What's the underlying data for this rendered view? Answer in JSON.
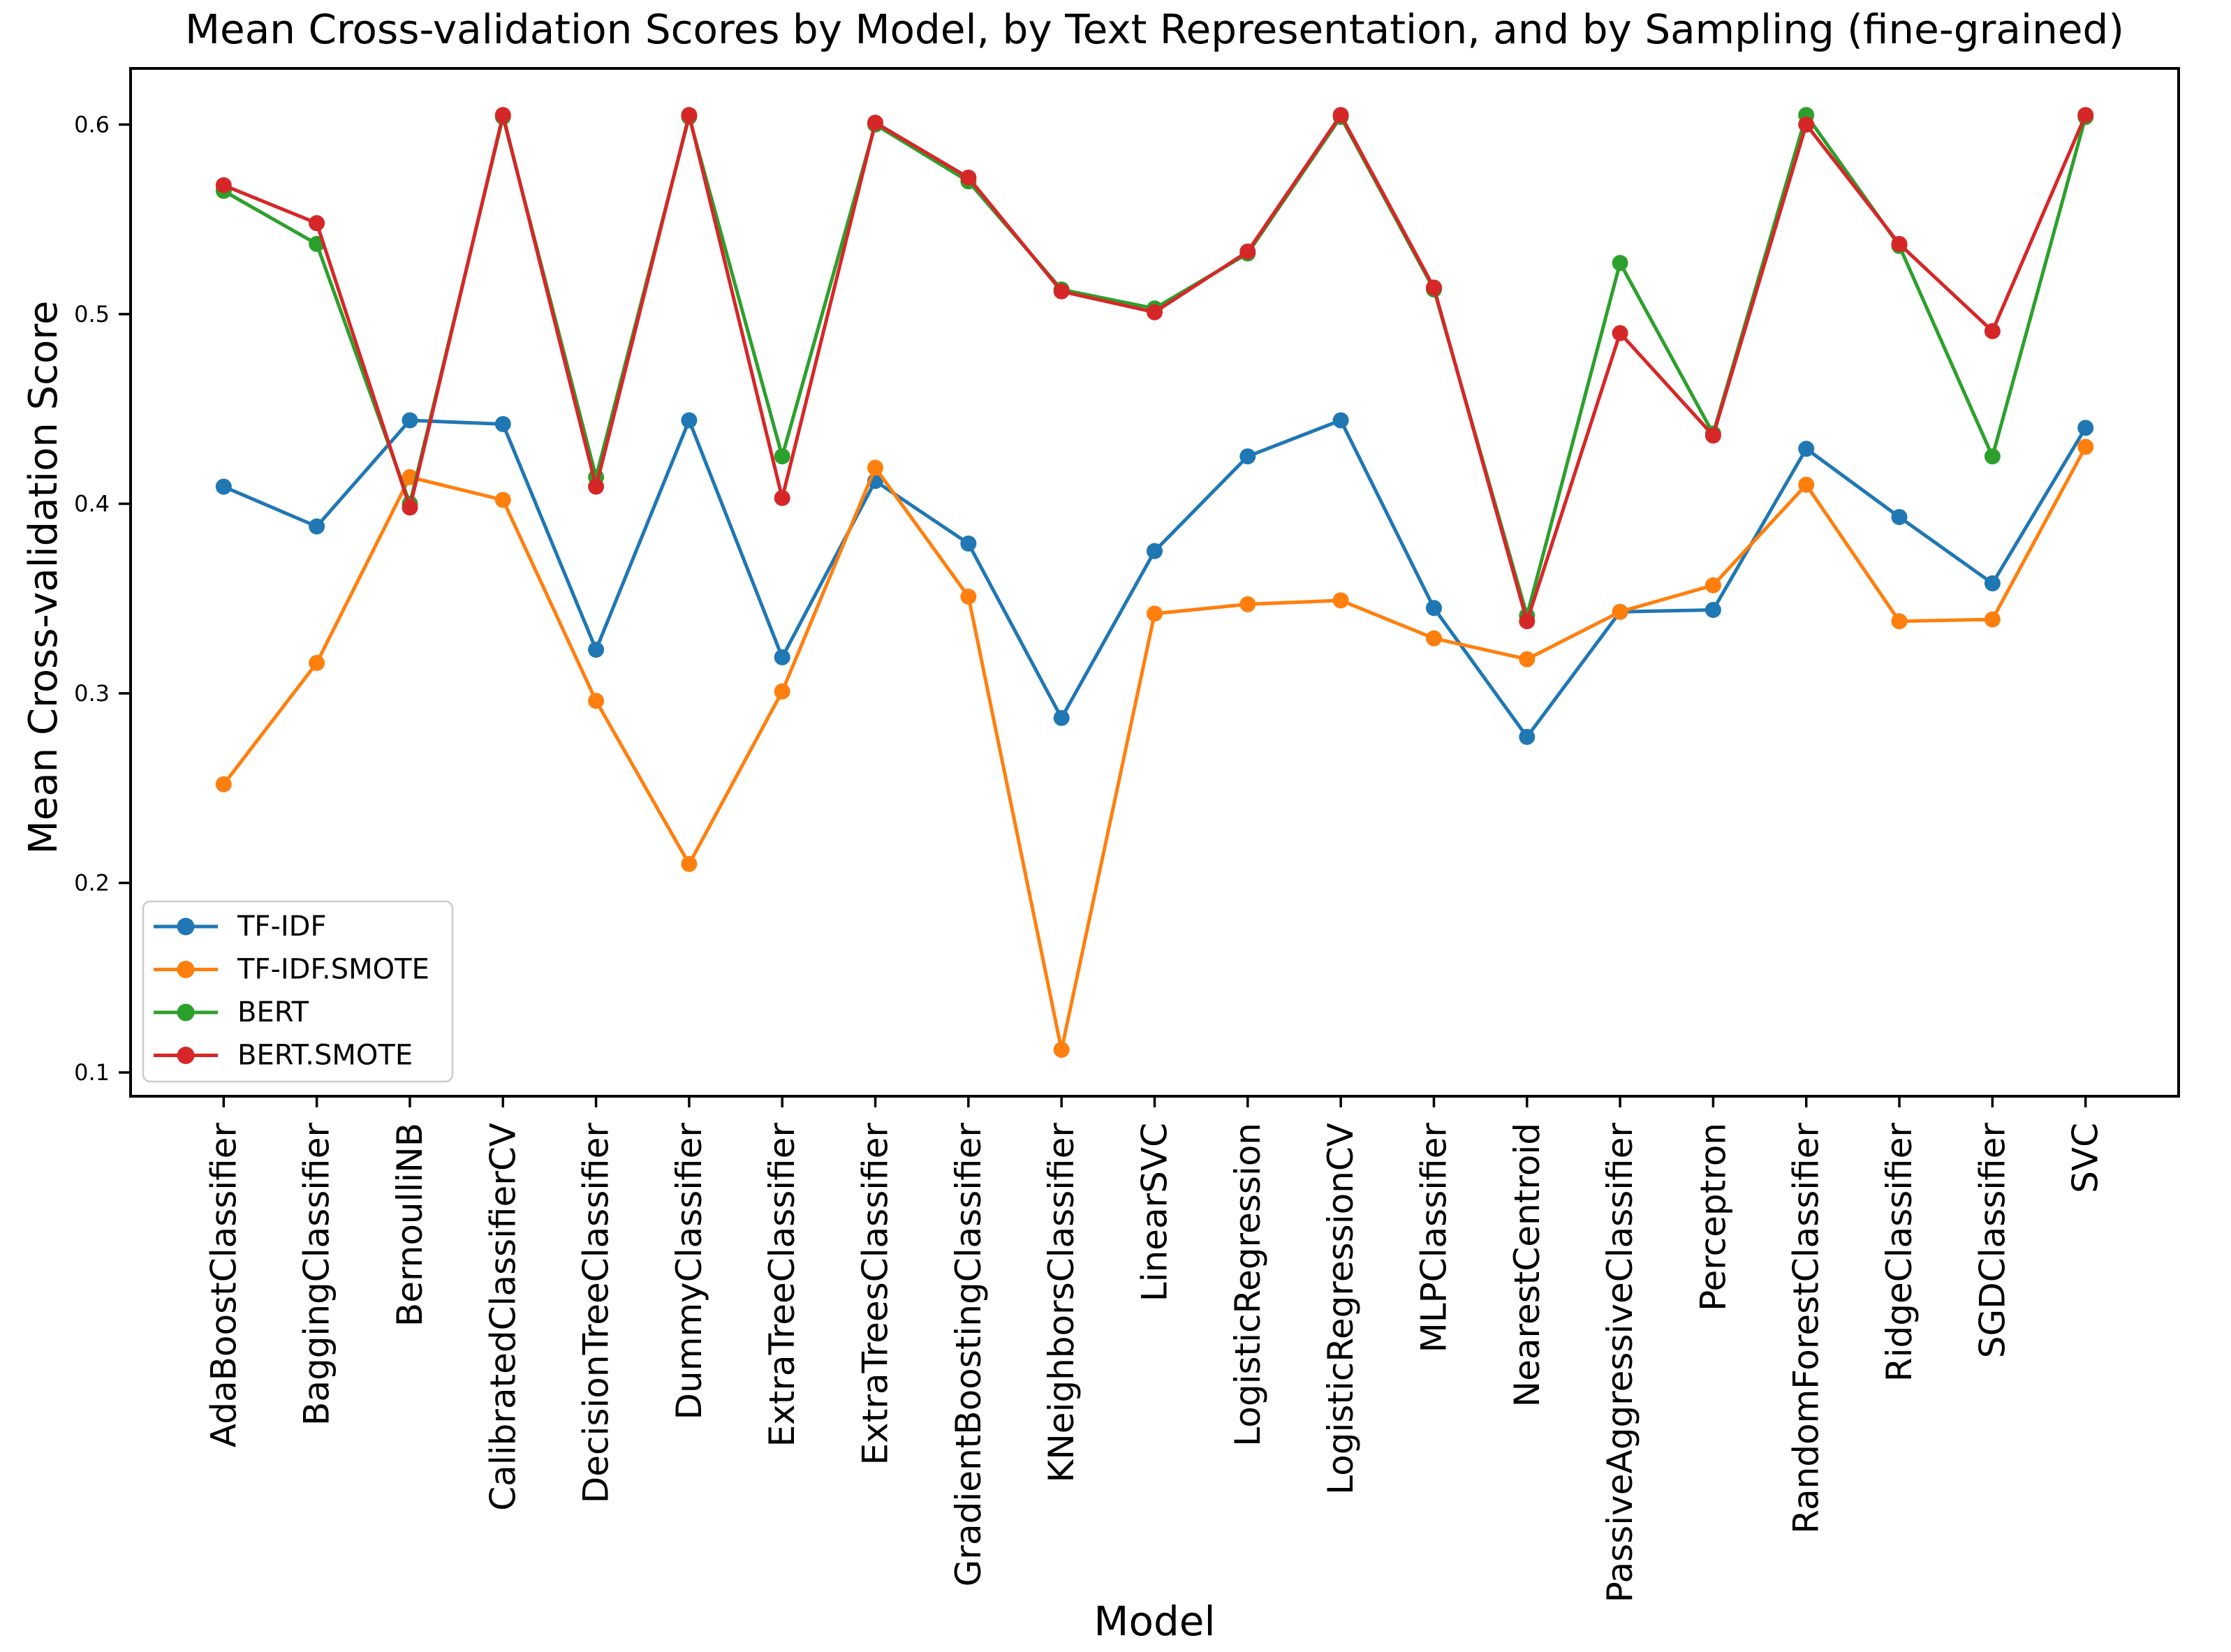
{
  "chart_data": {
    "type": "line",
    "title": "Mean Cross-validation Scores by Model, by Text Representation, and by Sampling (fine-grained)",
    "xlabel": "Model",
    "ylabel": "Mean Cross-validation Score",
    "ylim": [
      0.0875,
      0.6296
    ],
    "yticks": [
      0.1,
      0.2,
      0.3,
      0.4,
      0.5,
      0.6
    ],
    "grid": false,
    "legend_position": "lower-left",
    "marker": "circle",
    "categories": [
      "AdaBoostClassifier",
      "BaggingClassifier",
      "BernoulliNB",
      "CalibratedClassifierCV",
      "DecisionTreeClassifier",
      "DummyClassifier",
      "ExtraTreeClassifier",
      "ExtraTreesClassifier",
      "GradientBoostingClassifier",
      "KNeighborsClassifier",
      "LinearSVC",
      "LogisticRegression",
      "LogisticRegressionCV",
      "MLPClassifier",
      "NearestCentroid",
      "PassiveAggressiveClassifier",
      "Perceptron",
      "RandomForestClassifier",
      "RidgeClassifier",
      "SGDClassifier",
      "SVC"
    ],
    "series": [
      {
        "name": "TF-IDF",
        "color": "#1f77b4",
        "values": [
          0.409,
          0.388,
          0.444,
          0.442,
          0.323,
          0.444,
          0.319,
          0.412,
          0.379,
          0.287,
          0.375,
          0.425,
          0.444,
          0.345,
          0.277,
          0.343,
          0.344,
          0.429,
          0.393,
          0.358,
          0.44
        ]
      },
      {
        "name": "TF-IDF.SMOTE",
        "color": "#ff7f0e",
        "values": [
          0.252,
          0.316,
          0.414,
          0.402,
          0.296,
          0.21,
          0.301,
          0.419,
          0.351,
          0.112,
          0.342,
          0.347,
          0.349,
          0.329,
          0.318,
          0.343,
          0.357,
          0.41,
          0.338,
          0.339,
          0.43
        ]
      },
      {
        "name": "BERT",
        "color": "#2ca02c",
        "values": [
          0.565,
          0.537,
          0.4,
          0.604,
          0.414,
          0.604,
          0.425,
          0.6,
          0.57,
          0.513,
          0.503,
          0.532,
          0.604,
          0.513,
          0.341,
          0.527,
          0.437,
          0.605,
          0.536,
          0.425,
          0.604
        ]
      },
      {
        "name": "BERT.SMOTE",
        "color": "#d62728",
        "values": [
          0.568,
          0.548,
          0.398,
          0.605,
          0.409,
          0.605,
          0.403,
          0.601,
          0.572,
          0.512,
          0.501,
          0.533,
          0.605,
          0.514,
          0.338,
          0.49,
          0.436,
          0.6,
          0.537,
          0.491,
          0.605
        ]
      }
    ],
    "axis_color": "#000000",
    "legend_border_color": "#cccccc"
  }
}
